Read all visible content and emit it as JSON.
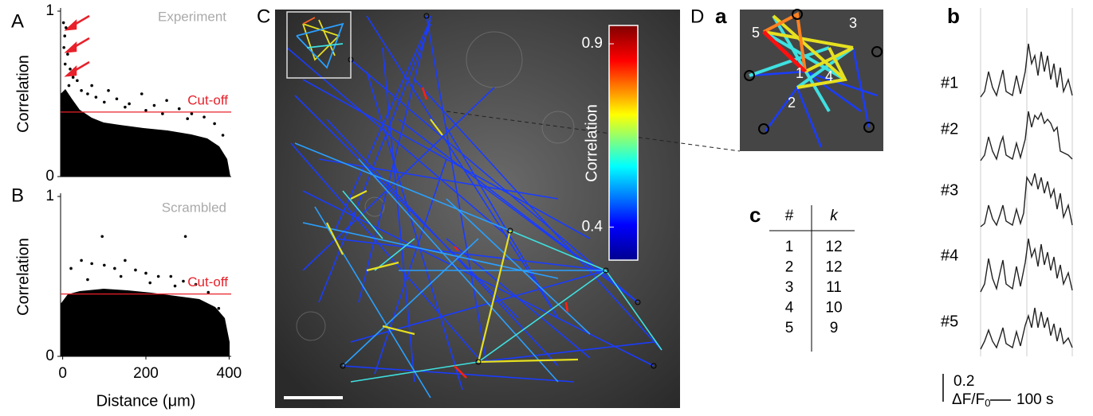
{
  "chart_data": [
    {
      "type": "scatter",
      "panel": "A",
      "y_label": "Correlation",
      "annotation": "Experiment",
      "cutoff_label": "Cut-off",
      "cutoff": 0.39,
      "x": [
        2,
        5,
        3,
        8,
        12,
        6,
        18,
        25,
        15,
        35,
        45,
        60,
        80,
        100,
        130,
        160,
        190,
        220,
        250,
        280,
        310,
        340,
        365,
        385,
        70,
        110,
        150,
        200,
        240,
        300
      ],
      "values": [
        0.93,
        0.85,
        0.78,
        0.9,
        0.74,
        0.68,
        0.65,
        0.6,
        0.55,
        0.58,
        0.52,
        0.5,
        0.48,
        0.45,
        0.47,
        0.44,
        0.5,
        0.43,
        0.46,
        0.41,
        0.38,
        0.36,
        0.32,
        0.25,
        0.55,
        0.52,
        0.42,
        0.4,
        0.38,
        0.35
      ],
      "color": "#000000",
      "xlim": [
        -5,
        405
      ],
      "ylim": [
        0,
        1
      ],
      "yticks": [
        0,
        1
      ]
    },
    {
      "type": "scatter",
      "panel": "B",
      "y_label": "Correlation",
      "x_label": "Distance (μm)",
      "annotation": "Scrambled",
      "cutoff_label": "Cut-off",
      "cutoff": 0.39,
      "x": [
        95,
        295,
        20,
        45,
        70,
        100,
        125,
        150,
        175,
        200,
        230,
        260,
        290,
        320,
        350,
        375,
        60,
        140,
        210,
        270
      ],
      "values": [
        0.75,
        0.75,
        0.55,
        0.6,
        0.58,
        0.57,
        0.55,
        0.6,
        0.54,
        0.52,
        0.5,
        0.5,
        0.47,
        0.45,
        0.4,
        0.3,
        0.48,
        0.5,
        0.46,
        0.44
      ],
      "color": "#000000",
      "xlim": [
        -5,
        405
      ],
      "ylim": [
        0,
        1
      ],
      "xticks": [
        0,
        200,
        400
      ],
      "yticks": [
        0,
        1
      ]
    }
  ],
  "network": {
    "panel": "C",
    "colorbar": {
      "label": "Correlation",
      "lim": [
        0.31,
        0.95
      ],
      "ticks": [
        0.4,
        0.9
      ]
    }
  },
  "zoom": {
    "panel": "D",
    "subpanel": "a",
    "nodes": [
      "1",
      "2",
      "3",
      "4",
      "5"
    ]
  },
  "table": {
    "subpanel": "c",
    "headers": [
      "#",
      "k"
    ],
    "rows": [
      [
        1,
        12
      ],
      [
        2,
        12
      ],
      [
        3,
        11
      ],
      [
        4,
        10
      ],
      [
        5,
        9
      ]
    ]
  },
  "traces": {
    "subpanel": "b",
    "labels": [
      "#1",
      "#2",
      "#3",
      "#4",
      "#5"
    ],
    "scale_value": 0.2,
    "scale_unit": "ΔF/F",
    "scale_unit_subscript": "0",
    "time_scale": "100 s"
  }
}
